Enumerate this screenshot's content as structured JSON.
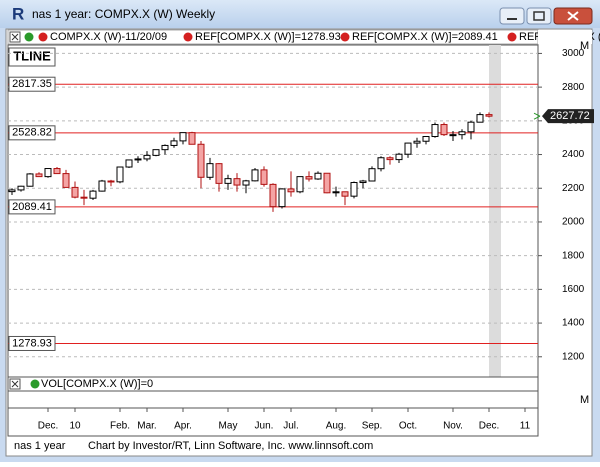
{
  "window": {
    "title": "nas 1 year: COMPX.X (W) Weekly",
    "logo": "R"
  },
  "chart_data": {
    "type": "candlestick",
    "legend": [
      "COMPX.X (W)-11/20/09",
      "REF[COMPX.X (W)]=1278.93",
      "REF[COMPX.X (W)]=2089.41",
      "REF[COMPX.X (W)]="
    ],
    "panel_label": "TLINE",
    "categories": [
      null,
      null,
      null,
      null,
      "Dec.",
      null,
      null,
      "10",
      null,
      null,
      null,
      null,
      "Feb.",
      null,
      null,
      "Mar.",
      null,
      null,
      null,
      "Apr.",
      null,
      null,
      null,
      null,
      "May",
      null,
      null,
      null,
      "Jun.",
      null,
      null,
      "Jul.",
      null,
      null,
      null,
      null,
      "Aug.",
      null,
      null,
      null,
      "Sep.",
      null,
      null,
      null,
      "Oct.",
      null,
      null,
      null,
      null,
      "Nov.",
      null,
      null,
      null,
      "Dec.",
      null,
      null,
      null,
      "11"
    ],
    "open": [
      2180,
      2190,
      2212,
      2285,
      2269,
      2317,
      2287,
      2205,
      2147,
      2141,
      2183,
      2243,
      2238,
      2326,
      2368,
      2374,
      2395,
      2429,
      2454,
      2481,
      2530,
      2461,
      2265,
      2346,
      2229,
      2257,
      2219,
      2244,
      2309,
      2223,
      2091,
      2196,
      2179,
      2269,
      2255,
      2289,
      2173,
      2179,
      2153,
      2234,
      2243,
      2316,
      2381,
      2370,
      2402,
      2468,
      2479,
      2507,
      2578,
      2518,
      2518,
      2535,
      2592,
      2637,
      null,
      null,
      null,
      null
    ],
    "high": [
      2200,
      2215,
      2290,
      2295,
      2317,
      2326,
      2309,
      2240,
      2190,
      2190,
      2250,
      2250,
      2326,
      2370,
      2390,
      2420,
      2430,
      2460,
      2500,
      2530,
      2535,
      2480,
      2380,
      2350,
      2280,
      2290,
      2250,
      2320,
      2330,
      2230,
      2200,
      2300,
      2270,
      2300,
      2300,
      2290,
      2210,
      2180,
      2240,
      2250,
      2330,
      2390,
      2390,
      2410,
      2470,
      2500,
      2510,
      2590,
      2590,
      2540,
      2550,
      2600,
      2650,
      2650,
      null,
      null,
      null,
      null
    ],
    "low": [
      2160,
      2180,
      2210,
      2269,
      2262,
      2287,
      2205,
      2140,
      2100,
      2130,
      2180,
      2212,
      2230,
      2320,
      2350,
      2360,
      2390,
      2400,
      2440,
      2460,
      2460,
      2200,
      2250,
      2180,
      2190,
      2180,
      2170,
      2240,
      2210,
      2060,
      2080,
      2150,
      2170,
      2240,
      2250,
      2170,
      2150,
      2100,
      2140,
      2200,
      2240,
      2300,
      2340,
      2350,
      2380,
      2440,
      2460,
      2500,
      2510,
      2480,
      2490,
      2490,
      2590,
      2620,
      null,
      null,
      null,
      null
    ],
    "close": [
      2190,
      2212,
      2285,
      2269,
      2317,
      2287,
      2205,
      2147,
      2141,
      2183,
      2243,
      2238,
      2326,
      2368,
      2374,
      2395,
      2429,
      2454,
      2481,
      2530,
      2461,
      2265,
      2346,
      2229,
      2257,
      2219,
      2244,
      2309,
      2223,
      2091,
      2196,
      2179,
      2269,
      2255,
      2289,
      2173,
      2179,
      2153,
      2234,
      2243,
      2316,
      2381,
      2370,
      2402,
      2468,
      2479,
      2507,
      2578,
      2518,
      2518,
      2535,
      2592,
      2637,
      2627.72,
      null,
      null,
      null,
      null
    ],
    "up_color": "#ffffff",
    "down_color": "#f4a4a4",
    "ref_lines": [
      2817.35,
      2528.82,
      2089.41,
      1278.93
    ],
    "ref_color": "#e02020",
    "last_price": 2627.72,
    "ylim": [
      1080,
      3050
    ],
    "yticks": [
      1200,
      1400,
      1600,
      1800,
      2000,
      2200,
      2400,
      2600,
      2800,
      3000
    ],
    "grid": true,
    "volume_legend": "VOL[COMPX.X (W)]=0",
    "panel_marker": "M"
  },
  "footer": {
    "left": "nas 1 year",
    "credit": "Chart by Investor/RT, Linn Software, Inc. www.linnsoft.com"
  }
}
